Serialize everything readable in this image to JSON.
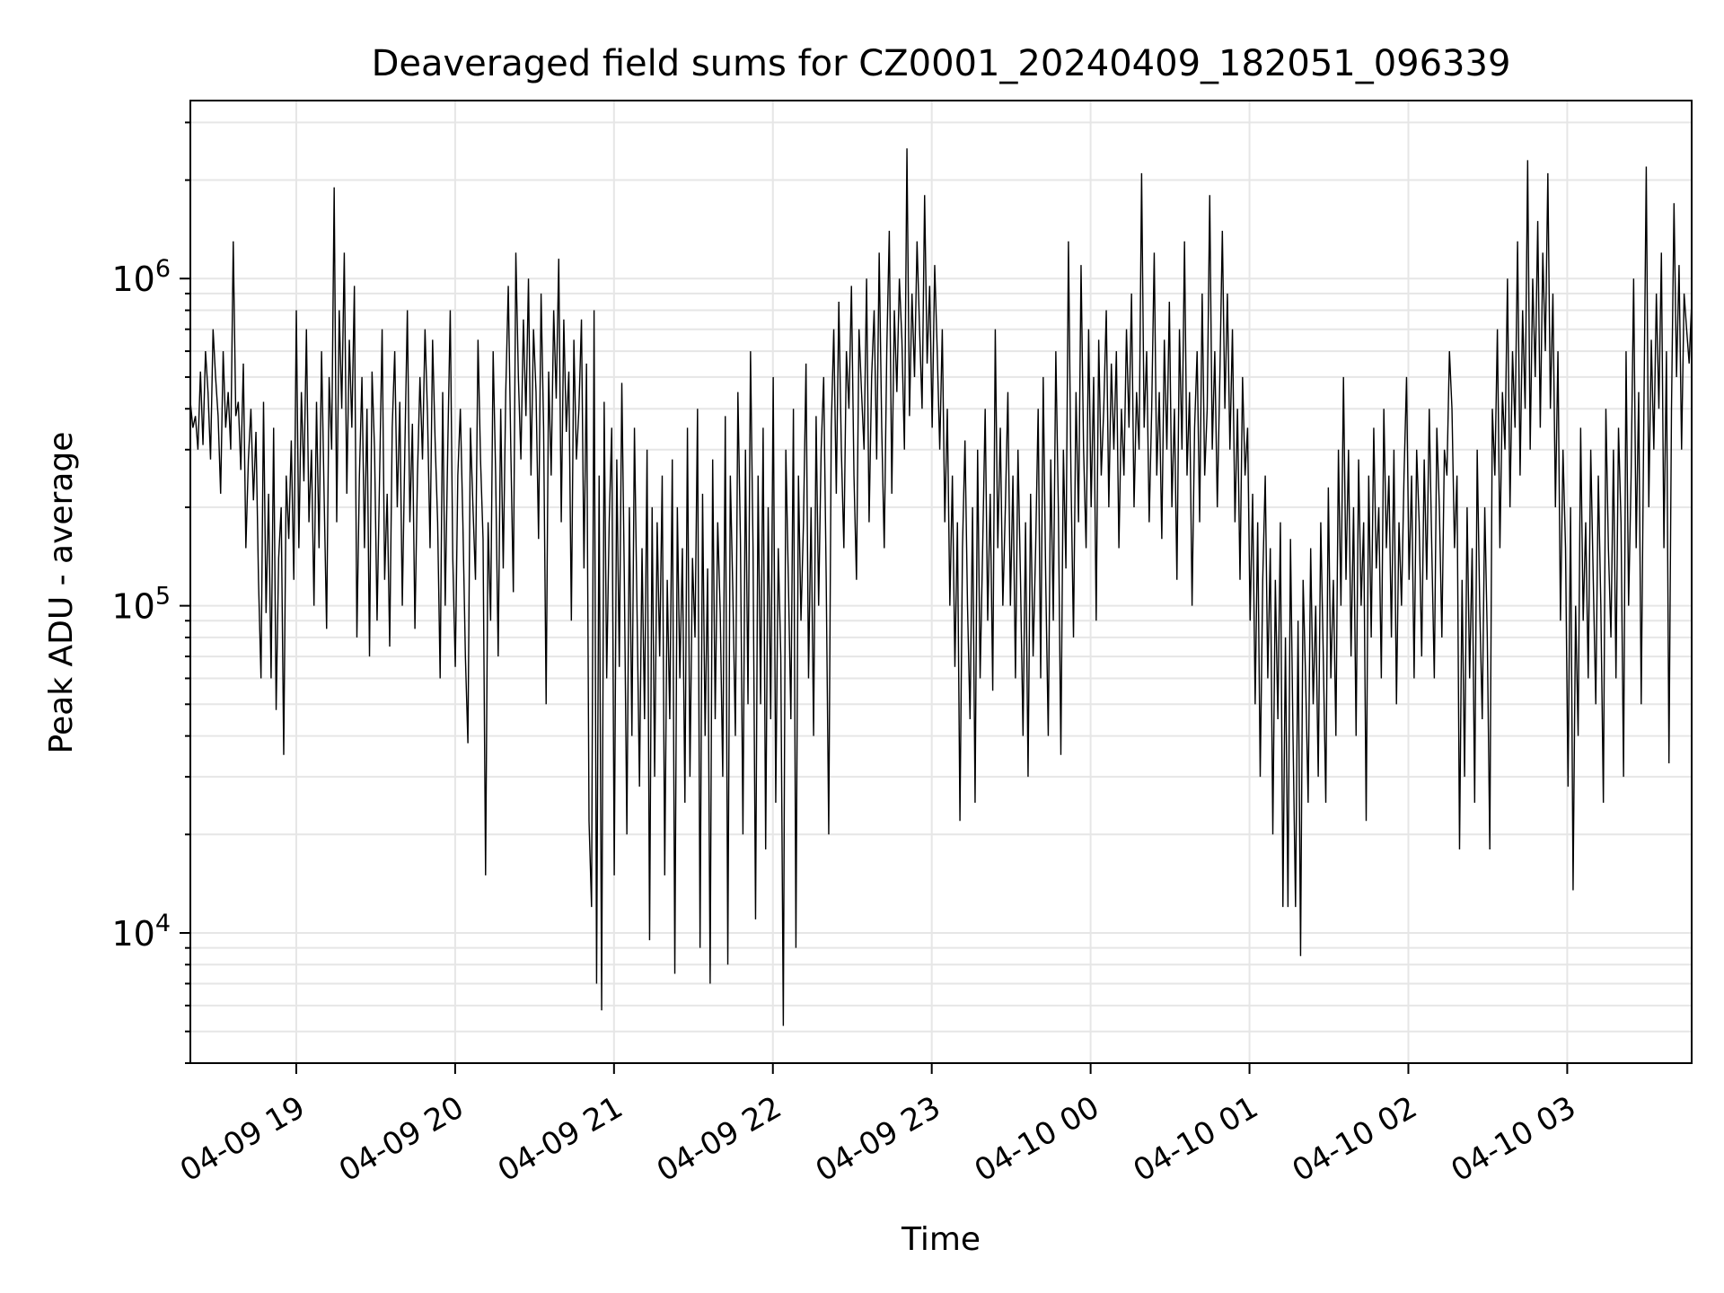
{
  "chart_data": {
    "type": "line",
    "title": "Deaveraged field sums for CZ0001_20240409_182051_096339",
    "xlabel": "Time",
    "ylabel": "Peak ADU - average",
    "yscale": "log",
    "xlim": [
      "2024-04-09 18:20",
      "2024-04-10 03:47"
    ],
    "ylim": [
      4000,
      3500000
    ],
    "y_major_ticks": [
      {
        "value": 10000,
        "base": "10",
        "exp": "4"
      },
      {
        "value": 100000,
        "base": "10",
        "exp": "5"
      },
      {
        "value": 1000000,
        "base": "10",
        "exp": "6"
      }
    ],
    "x_ticks": [
      {
        "value": "2024-04-09 19:00",
        "label": "04-09 19"
      },
      {
        "value": "2024-04-09 20:00",
        "label": "04-09 20"
      },
      {
        "value": "2024-04-09 21:00",
        "label": "04-09 21"
      },
      {
        "value": "2024-04-09 22:00",
        "label": "04-09 22"
      },
      {
        "value": "2024-04-09 23:00",
        "label": "04-09 23"
      },
      {
        "value": "2024-04-10 00:00",
        "label": "04-10 00"
      },
      {
        "value": "2024-04-10 01:00",
        "label": "04-10 01"
      },
      {
        "value": "2024-04-10 02:00",
        "label": "04-10 02"
      },
      {
        "value": "2024-04-10 03:00",
        "label": "04-10 03"
      }
    ],
    "grid": true,
    "line_color": "#000000",
    "grid_color": "#e6e6e6",
    "series": [
      {
        "name": "",
        "x_start": "2024-04-09 18:20",
        "x_end": "2024-04-10 03:47",
        "values": [
          420000,
          350000,
          380000,
          300000,
          520000,
          310000,
          600000,
          450000,
          280000,
          700000,
          500000,
          380000,
          220000,
          600000,
          350000,
          450000,
          300000,
          1300000,
          380000,
          420000,
          260000,
          550000,
          150000,
          280000,
          400000,
          210000,
          340000,
          120000,
          60000,
          420000,
          95000,
          220000,
          60000,
          350000,
          48000,
          140000,
          200000,
          35000,
          250000,
          160000,
          320000,
          120000,
          800000,
          150000,
          450000,
          240000,
          700000,
          180000,
          300000,
          100000,
          420000,
          150000,
          600000,
          220000,
          85000,
          500000,
          300000,
          1900000,
          180000,
          800000,
          400000,
          1200000,
          220000,
          650000,
          350000,
          950000,
          80000,
          250000,
          500000,
          150000,
          400000,
          70000,
          520000,
          300000,
          90000,
          250000,
          700000,
          120000,
          220000,
          75000,
          350000,
          600000,
          200000,
          420000,
          100000,
          300000,
          800000,
          180000,
          360000,
          85000,
          250000,
          500000,
          280000,
          700000,
          380000,
          150000,
          650000,
          320000,
          180000,
          60000,
          450000,
          100000,
          300000,
          800000,
          140000,
          65000,
          250000,
          400000,
          180000,
          70000,
          38000,
          350000,
          200000,
          120000,
          650000,
          280000,
          160000,
          15000,
          180000,
          90000,
          600000,
          250000,
          70000,
          400000,
          130000,
          450000,
          950000,
          300000,
          110000,
          1200000,
          500000,
          280000,
          750000,
          380000,
          1000000,
          250000,
          700000,
          450000,
          160000,
          900000,
          350000,
          50000,
          520000,
          250000,
          800000,
          430000,
          1150000,
          180000,
          750000,
          340000,
          520000,
          90000,
          650000,
          280000,
          400000,
          750000,
          130000,
          550000,
          22000,
          12000,
          800000,
          7000,
          250000,
          5800,
          420000,
          60000,
          180000,
          350000,
          15000,
          280000,
          65000,
          480000,
          120000,
          20000,
          200000,
          40000,
          350000,
          100000,
          28000,
          150000,
          45000,
          300000,
          9500,
          200000,
          30000,
          180000,
          70000,
          250000,
          15000,
          120000,
          45000,
          280000,
          7500,
          200000,
          60000,
          150000,
          25000,
          350000,
          30000,
          140000,
          80000,
          400000,
          9000,
          220000,
          40000,
          130000,
          7000,
          280000,
          45000,
          180000,
          95000,
          30000,
          380000,
          8000,
          250000,
          110000,
          40000,
          450000,
          160000,
          20000,
          300000,
          50000,
          600000,
          150000,
          11000,
          250000,
          50000,
          350000,
          18000,
          200000,
          45000,
          500000,
          25000,
          150000,
          70000,
          5200,
          300000,
          120000,
          45000,
          400000,
          9000,
          250000,
          90000,
          180000,
          550000,
          60000,
          200000,
          40000,
          380000,
          100000,
          300000,
          500000,
          120000,
          20000,
          350000,
          700000,
          220000,
          850000,
          300000,
          150000,
          600000,
          400000,
          950000,
          250000,
          120000,
          700000,
          450000,
          300000,
          1000000,
          180000,
          500000,
          800000,
          280000,
          1200000,
          350000,
          150000,
          600000,
          1400000,
          220000,
          800000,
          450000,
          1000000,
          650000,
          300000,
          2500000,
          380000,
          900000,
          500000,
          1300000,
          700000,
          400000,
          1800000,
          550000,
          950000,
          350000,
          1100000,
          600000,
          300000,
          700000,
          180000,
          400000,
          100000,
          250000,
          65000,
          180000,
          22000,
          150000,
          320000,
          100000,
          45000,
          200000,
          25000,
          300000,
          60000,
          150000,
          400000,
          90000,
          220000,
          55000,
          700000,
          150000,
          350000,
          100000,
          200000,
          450000,
          100000,
          250000,
          60000,
          300000,
          120000,
          40000,
          180000,
          30000,
          220000,
          70000,
          150000,
          400000,
          60000,
          500000,
          120000,
          40000,
          280000,
          90000,
          600000,
          200000,
          35000,
          300000,
          130000,
          1300000,
          250000,
          80000,
          450000,
          180000,
          1100000,
          300000,
          150000,
          700000,
          200000,
          500000,
          90000,
          650000,
          250000,
          400000,
          800000,
          200000,
          550000,
          300000,
          600000,
          150000,
          400000,
          250000,
          700000,
          350000,
          900000,
          200000,
          450000,
          300000,
          2100000,
          350000,
          600000,
          180000,
          400000,
          1200000,
          250000,
          450000,
          160000,
          650000,
          300000,
          850000,
          200000,
          400000,
          120000,
          700000,
          300000,
          1300000,
          250000,
          450000,
          100000,
          350000,
          600000,
          180000,
          900000,
          250000,
          400000,
          1800000,
          300000,
          600000,
          200000,
          500000,
          1400000,
          400000,
          900000,
          300000,
          700000,
          180000,
          400000,
          120000,
          500000,
          250000,
          350000,
          90000,
          220000,
          50000,
          180000,
          30000,
          120000,
          250000,
          60000,
          150000,
          20000,
          120000,
          45000,
          180000,
          12000,
          80000,
          12000,
          160000,
          40000,
          12000,
          90000,
          8500,
          120000,
          60000,
          25000,
          150000,
          50000,
          100000,
          30000,
          180000,
          70000,
          25000,
          230000,
          60000,
          120000,
          40000,
          300000,
          100000,
          500000,
          120000,
          300000,
          70000,
          200000,
          40000,
          280000,
          100000,
          180000,
          22000,
          250000,
          80000,
          350000,
          130000,
          200000,
          60000,
          400000,
          150000,
          250000,
          80000,
          300000,
          50000,
          180000,
          100000,
          250000,
          500000,
          120000,
          250000,
          60000,
          300000,
          180000,
          70000,
          280000,
          120000,
          400000,
          150000,
          60000,
          350000,
          200000,
          80000,
          300000,
          250000,
          600000,
          400000,
          150000,
          250000,
          18000,
          120000,
          30000,
          200000,
          60000,
          150000,
          25000,
          300000,
          100000,
          45000,
          200000,
          80000,
          18000,
          400000,
          250000,
          700000,
          150000,
          450000,
          300000,
          1000000,
          200000,
          600000,
          350000,
          1300000,
          250000,
          800000,
          400000,
          2300000,
          300000,
          1000000,
          500000,
          1500000,
          350000,
          1200000,
          600000,
          2100000,
          400000,
          900000,
          200000,
          600000,
          90000,
          300000,
          150000,
          28000,
          200000,
          13500,
          100000,
          40000,
          350000,
          90000,
          180000,
          60000,
          300000,
          120000,
          50000,
          250000,
          100000,
          25000,
          400000,
          150000,
          80000,
          300000,
          60000,
          350000,
          180000,
          30000,
          600000,
          100000,
          250000,
          1000000,
          150000,
          450000,
          50000,
          350000,
          2200000,
          200000,
          650000,
          300000,
          900000,
          400000,
          1200000,
          150000,
          600000,
          33000,
          400000,
          1700000,
          500000,
          1100000,
          300000,
          900000,
          700000,
          550000,
          850000
        ]
      }
    ]
  }
}
